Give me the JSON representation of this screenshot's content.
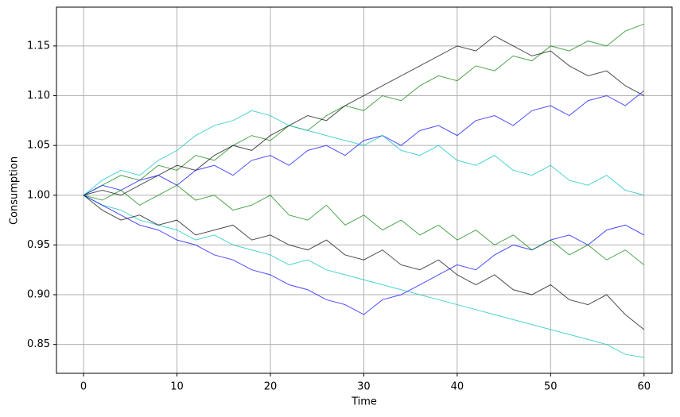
{
  "chart_data": {
    "type": "line",
    "xlabel": "Time",
    "ylabel": "Consumption",
    "x": [
      0,
      2,
      4,
      6,
      8,
      10,
      12,
      14,
      16,
      18,
      20,
      22,
      24,
      26,
      28,
      30,
      32,
      34,
      36,
      38,
      40,
      42,
      44,
      46,
      48,
      50,
      52,
      54,
      56,
      58,
      60
    ],
    "series": [
      {
        "color": "#008000",
        "values": [
          1,
          1.01,
          1.02,
          1.015,
          1.03,
          1.025,
          1.04,
          1.035,
          1.05,
          1.06,
          1.055,
          1.07,
          1.065,
          1.08,
          1.09,
          1.085,
          1.1,
          1.095,
          1.11,
          1.12,
          1.115,
          1.13,
          1.125,
          1.14,
          1.135,
          1.15,
          1.145,
          1.155,
          1.15,
          1.165,
          1.172
        ]
      },
      {
        "color": "#00bfbf",
        "values": [
          1,
          0.99,
          0.985,
          0.975,
          0.97,
          0.965,
          0.955,
          0.96,
          0.95,
          0.945,
          0.94,
          0.93,
          0.935,
          0.925,
          0.92,
          0.915,
          0.91,
          0.905,
          0.9,
          0.895,
          0.89,
          0.885,
          0.88,
          0.875,
          0.87,
          0.865,
          0.86,
          0.855,
          0.85,
          0.84,
          0.837
        ]
      },
      {
        "color": "#000000",
        "values": [
          1,
          1.005,
          1.0,
          1.01,
          1.02,
          1.03,
          1.025,
          1.04,
          1.05,
          1.045,
          1.06,
          1.07,
          1.08,
          1.075,
          1.09,
          1.1,
          1.11,
          1.12,
          1.13,
          1.14,
          1.15,
          1.145,
          1.16,
          1.15,
          1.14,
          1.145,
          1.13,
          1.12,
          1.125,
          1.11,
          1.1
        ]
      },
      {
        "color": "#0000ff",
        "values": [
          1,
          0.99,
          0.98,
          0.97,
          0.965,
          0.955,
          0.95,
          0.94,
          0.935,
          0.925,
          0.92,
          0.91,
          0.905,
          0.895,
          0.89,
          0.88,
          0.895,
          0.9,
          0.91,
          0.92,
          0.93,
          0.925,
          0.94,
          0.95,
          0.945,
          0.955,
          0.96,
          0.95,
          0.965,
          0.97,
          0.96
        ]
      },
      {
        "color": "#0000ff",
        "values": [
          1,
          1.01,
          1.005,
          1.015,
          1.02,
          1.01,
          1.025,
          1.03,
          1.02,
          1.035,
          1.04,
          1.03,
          1.045,
          1.05,
          1.04,
          1.055,
          1.06,
          1.05,
          1.065,
          1.07,
          1.06,
          1.075,
          1.08,
          1.07,
          1.085,
          1.09,
          1.08,
          1.095,
          1.1,
          1.09,
          1.105
        ]
      },
      {
        "color": "#008000",
        "values": [
          1,
          0.995,
          1.005,
          0.99,
          1.0,
          1.01,
          0.995,
          1.0,
          0.985,
          0.99,
          1.0,
          0.98,
          0.975,
          0.99,
          0.97,
          0.98,
          0.965,
          0.975,
          0.96,
          0.97,
          0.955,
          0.965,
          0.95,
          0.96,
          0.945,
          0.955,
          0.94,
          0.95,
          0.935,
          0.945,
          0.93
        ]
      },
      {
        "color": "#000000",
        "values": [
          1,
          0.985,
          0.975,
          0.98,
          0.97,
          0.975,
          0.96,
          0.965,
          0.97,
          0.955,
          0.96,
          0.95,
          0.945,
          0.955,
          0.94,
          0.935,
          0.945,
          0.93,
          0.925,
          0.935,
          0.92,
          0.91,
          0.92,
          0.905,
          0.9,
          0.91,
          0.895,
          0.89,
          0.9,
          0.88,
          0.865
        ]
      },
      {
        "color": "#00bfbf",
        "values": [
          1,
          1.015,
          1.025,
          1.02,
          1.035,
          1.045,
          1.06,
          1.07,
          1.075,
          1.085,
          1.08,
          1.07,
          1.065,
          1.06,
          1.055,
          1.05,
          1.06,
          1.045,
          1.04,
          1.05,
          1.035,
          1.03,
          1.04,
          1.025,
          1.02,
          1.03,
          1.015,
          1.01,
          1.02,
          1.005,
          1.0
        ]
      }
    ],
    "xlim": [
      -2.9,
      63
    ],
    "ylim": [
      0.821,
      1.189
    ],
    "xticks": [
      0,
      10,
      20,
      30,
      40,
      50,
      60
    ],
    "yticks": [
      0.85,
      {
        "value": 0.9,
        "label": "0.90"
      },
      0.95,
      {
        "value": 1.0,
        "label": "1.00"
      },
      1.05,
      {
        "value": 1.1,
        "label": "1.10"
      },
      1.15
    ],
    "grid": true
  }
}
